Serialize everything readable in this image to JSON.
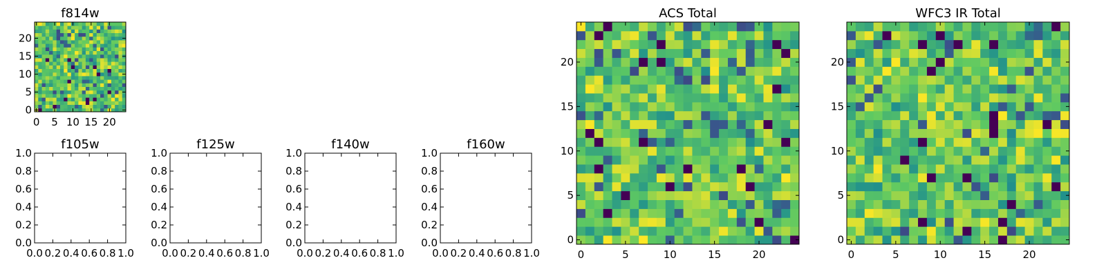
{
  "chart_data": [
    {
      "type": "heatmap",
      "title": "f814w",
      "xlabel": "",
      "ylabel": "",
      "xlim": [
        -0.5,
        24.5
      ],
      "ylim": [
        -0.5,
        24.5
      ],
      "xticks": [
        0,
        5,
        10,
        15,
        20
      ],
      "yticks": [
        0,
        5,
        10,
        15,
        20
      ],
      "grid_size": [
        25,
        25
      ],
      "value_range": [
        0,
        1
      ],
      "seed": 814,
      "colormap": [
        "#440154",
        "#3b528b",
        "#21918c",
        "#5ec962",
        "#fde725"
      ]
    },
    {
      "type": "empty",
      "title": "f105w",
      "xlim": [
        0,
        1
      ],
      "ylim": [
        0,
        1
      ],
      "xticks": [
        "0.0",
        "0.2",
        "0.4",
        "0.6",
        "0.8",
        "1.0"
      ],
      "yticks": [
        "0.0",
        "0.2",
        "0.4",
        "0.6",
        "0.8",
        "1.0"
      ]
    },
    {
      "type": "empty",
      "title": "f125w",
      "xlim": [
        0,
        1
      ],
      "ylim": [
        0,
        1
      ],
      "xticks": [
        "0.0",
        "0.2",
        "0.4",
        "0.6",
        "0.8",
        "1.0"
      ],
      "yticks": [
        "0.0",
        "0.2",
        "0.4",
        "0.6",
        "0.8",
        "1.0"
      ]
    },
    {
      "type": "empty",
      "title": "f140w",
      "xlim": [
        0,
        1
      ],
      "ylim": [
        0,
        1
      ],
      "xticks": [
        "0.0",
        "0.2",
        "0.4",
        "0.6",
        "0.8",
        "1.0"
      ],
      "yticks": [
        "0.0",
        "0.2",
        "0.4",
        "0.6",
        "0.8",
        "1.0"
      ]
    },
    {
      "type": "empty",
      "title": "f160w",
      "xlim": [
        0,
        1
      ],
      "ylim": [
        0,
        1
      ],
      "xticks": [
        "0.0",
        "0.2",
        "0.4",
        "0.6",
        "0.8",
        "1.0"
      ],
      "yticks": [
        "0.0",
        "0.2",
        "0.4",
        "0.6",
        "0.8",
        "1.0"
      ]
    },
    {
      "type": "heatmap",
      "title": "ACS Total",
      "xlabel": "",
      "ylabel": "",
      "xlim": [
        -0.5,
        24.5
      ],
      "ylim": [
        -0.5,
        24.5
      ],
      "xticks": [
        0,
        5,
        10,
        15,
        20
      ],
      "yticks": [
        0,
        5,
        10,
        15,
        20
      ],
      "grid_size": [
        25,
        25
      ],
      "value_range": [
        0,
        1
      ],
      "seed": 2718,
      "colormap": [
        "#440154",
        "#3b528b",
        "#21918c",
        "#5ec962",
        "#fde725"
      ]
    },
    {
      "type": "heatmap",
      "title": "WFC3 IR Total",
      "xlabel": "",
      "ylabel": "",
      "xlim": [
        -0.5,
        24.5
      ],
      "ylim": [
        -0.5,
        24.5
      ],
      "xticks": [
        0,
        5,
        10,
        15,
        20
      ],
      "yticks": [
        0,
        5,
        10,
        15,
        20
      ],
      "grid_size": [
        25,
        25
      ],
      "value_range": [
        0,
        1
      ],
      "seed": 3141,
      "colormap": [
        "#440154",
        "#3b528b",
        "#21918c",
        "#5ec962",
        "#fde725"
      ]
    }
  ]
}
